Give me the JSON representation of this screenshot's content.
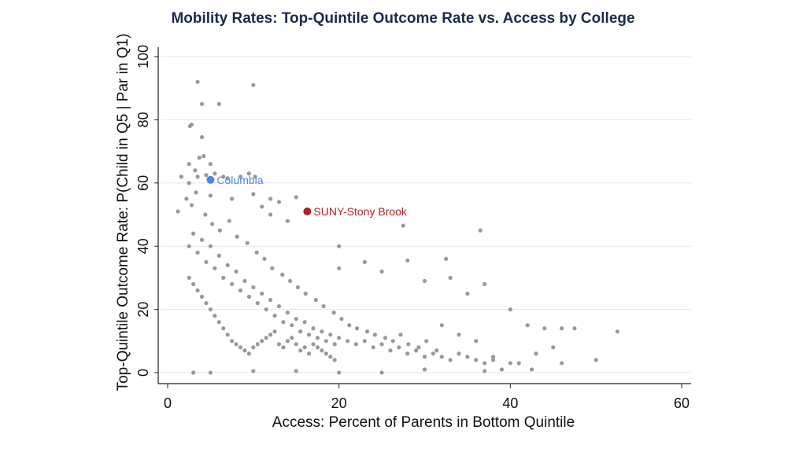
{
  "chart_data": {
    "type": "scatter",
    "title": "Mobility Rates: Top-Quintile Outcome Rate vs. Access by College",
    "xlabel": "Access: Percent of Parents in Bottom Quintile",
    "ylabel": "Top-Quintile Outcome Rate: P(Child in Q5 | Par in Q1)",
    "xlim": [
      0,
      60
    ],
    "ylim": [
      0,
      100
    ],
    "xticks": [
      "0",
      "20",
      "40",
      "60"
    ],
    "yticks": [
      "0",
      "20",
      "40",
      "60",
      "80",
      "100"
    ],
    "grid": true,
    "colors": {
      "points": "#999999",
      "title": "#1a2b4c",
      "columbia": "#4a86e8",
      "stony_brook": "#b22222"
    },
    "highlighted": [
      {
        "name": "Columbia",
        "x": 5.0,
        "y": 61.0,
        "color": "#4a86e8"
      },
      {
        "name": "SUNY-Stony Brook",
        "x": 16.3,
        "y": 51.0,
        "color": "#b22222"
      }
    ],
    "series": [
      {
        "values": [
          [
            3.5,
            92
          ],
          [
            10,
            91
          ],
          [
            4,
            85
          ],
          [
            6,
            85
          ],
          [
            2.6,
            78
          ],
          [
            2.8,
            78.5
          ],
          [
            4,
            74.5
          ],
          [
            3.7,
            68
          ],
          [
            4.2,
            68.5
          ],
          [
            2.5,
            66
          ],
          [
            5,
            66
          ],
          [
            3.2,
            64
          ],
          [
            1.6,
            62
          ],
          [
            2.5,
            60
          ],
          [
            3.5,
            62
          ],
          [
            4.5,
            62.5
          ],
          [
            5.5,
            63
          ],
          [
            6.5,
            62
          ],
          [
            7,
            61.5
          ],
          [
            8.5,
            62
          ],
          [
            9.5,
            63
          ],
          [
            10.2,
            62
          ],
          [
            12,
            55
          ],
          [
            13,
            54
          ],
          [
            15,
            55.5
          ],
          [
            1.2,
            51
          ],
          [
            2.8,
            53
          ],
          [
            5,
            56
          ],
          [
            7.5,
            55
          ],
          [
            10,
            56.5
          ],
          [
            12,
            50
          ],
          [
            14,
            48
          ],
          [
            11,
            52.5
          ],
          [
            27.5,
            46.5
          ],
          [
            36.5,
            45
          ],
          [
            20,
            40
          ],
          [
            28,
            35.5
          ],
          [
            32.5,
            36
          ],
          [
            37,
            28
          ],
          [
            33,
            30
          ],
          [
            23,
            35
          ],
          [
            25,
            32
          ],
          [
            20,
            33
          ],
          [
            30,
            29
          ],
          [
            35,
            25
          ],
          [
            40,
            20
          ],
          [
            42,
            15
          ],
          [
            44,
            14
          ],
          [
            46,
            14
          ],
          [
            47.5,
            14
          ],
          [
            52.5,
            13
          ],
          [
            50,
            4
          ],
          [
            46,
            3
          ],
          [
            45,
            8
          ],
          [
            43,
            6
          ],
          [
            41,
            3
          ],
          [
            38,
            5
          ],
          [
            36,
            10
          ],
          [
            34,
            12
          ],
          [
            32,
            15
          ],
          [
            39,
            1
          ],
          [
            42.5,
            1
          ],
          [
            37,
            0.5
          ],
          [
            30,
            1
          ],
          [
            25,
            0
          ],
          [
            20,
            0
          ],
          [
            15,
            0.5
          ],
          [
            10,
            0.5
          ],
          [
            5,
            0
          ],
          [
            3,
            0
          ],
          [
            2.5,
            40
          ],
          [
            3,
            44
          ],
          [
            3.5,
            38
          ],
          [
            4,
            42
          ],
          [
            4.5,
            35
          ],
          [
            5,
            40
          ],
          [
            5.5,
            33
          ],
          [
            6,
            37
          ],
          [
            6.5,
            30
          ],
          [
            7,
            34
          ],
          [
            7.5,
            28
          ],
          [
            8,
            32
          ],
          [
            8.5,
            26
          ],
          [
            9,
            29
          ],
          [
            9.5,
            24
          ],
          [
            10,
            27
          ],
          [
            10.5,
            22
          ],
          [
            11,
            25
          ],
          [
            11.5,
            20
          ],
          [
            12,
            23
          ],
          [
            12.5,
            18
          ],
          [
            13,
            21
          ],
          [
            13.5,
            16
          ],
          [
            14,
            19
          ],
          [
            14.5,
            15
          ],
          [
            15,
            17
          ],
          [
            15.5,
            13
          ],
          [
            16,
            16
          ],
          [
            16.5,
            12
          ],
          [
            17,
            14
          ],
          [
            17.5,
            11
          ],
          [
            18,
            13
          ],
          [
            18.5,
            10
          ],
          [
            19,
            12
          ],
          [
            19.5,
            9
          ],
          [
            20,
            11
          ],
          [
            21,
            10
          ],
          [
            22,
            9
          ],
          [
            23,
            10
          ],
          [
            24,
            8
          ],
          [
            25,
            9
          ],
          [
            26,
            7
          ],
          [
            27,
            8
          ],
          [
            28,
            6
          ],
          [
            29,
            7
          ],
          [
            30,
            5
          ],
          [
            31,
            6
          ],
          [
            32,
            5
          ],
          [
            33,
            4
          ],
          [
            34,
            6
          ],
          [
            35,
            5
          ],
          [
            36,
            4
          ],
          [
            37,
            3
          ],
          [
            38,
            4
          ],
          [
            40,
            3
          ],
          [
            2.5,
            30
          ],
          [
            3,
            28
          ],
          [
            3.5,
            26
          ],
          [
            4,
            24
          ],
          [
            4.5,
            22
          ],
          [
            5,
            20
          ],
          [
            5.5,
            18
          ],
          [
            6,
            16
          ],
          [
            6.5,
            14
          ],
          [
            7,
            12
          ],
          [
            7.5,
            10
          ],
          [
            8,
            9
          ],
          [
            8.5,
            8
          ],
          [
            9,
            7
          ],
          [
            9.5,
            6
          ],
          [
            10,
            8
          ],
          [
            10.5,
            9
          ],
          [
            11,
            10
          ],
          [
            11.5,
            11
          ],
          [
            12,
            12
          ],
          [
            12.5,
            13
          ],
          [
            13,
            9
          ],
          [
            13.5,
            8
          ],
          [
            14,
            10
          ],
          [
            14.5,
            11
          ],
          [
            15,
            9
          ],
          [
            15.5,
            7
          ],
          [
            16,
            8
          ],
          [
            16.5,
            6
          ],
          [
            17,
            9
          ],
          [
            17.5,
            8
          ],
          [
            18,
            7
          ],
          [
            18.5,
            6
          ],
          [
            19,
            5
          ],
          [
            19.5,
            4
          ],
          [
            2.2,
            55
          ],
          [
            3.3,
            57
          ],
          [
            4.4,
            50
          ],
          [
            5.2,
            47
          ],
          [
            6.1,
            45
          ],
          [
            7.2,
            48
          ],
          [
            8.1,
            43
          ],
          [
            9.3,
            41
          ],
          [
            10.4,
            38
          ],
          [
            11.3,
            36
          ],
          [
            12.2,
            33
          ],
          [
            13.4,
            31
          ],
          [
            14.3,
            29
          ],
          [
            15.2,
            27
          ],
          [
            16.1,
            25
          ],
          [
            17.3,
            23
          ],
          [
            18.2,
            21
          ],
          [
            19.4,
            19
          ],
          [
            20.3,
            17
          ],
          [
            21.2,
            15
          ],
          [
            22.1,
            14
          ],
          [
            23.3,
            13
          ],
          [
            24.2,
            12
          ],
          [
            25.4,
            11
          ],
          [
            26.3,
            10
          ],
          [
            27.2,
            12
          ],
          [
            28.1,
            9
          ],
          [
            29.3,
            8
          ],
          [
            30.2,
            10
          ],
          [
            31.4,
            7
          ]
        ]
      }
    ]
  }
}
